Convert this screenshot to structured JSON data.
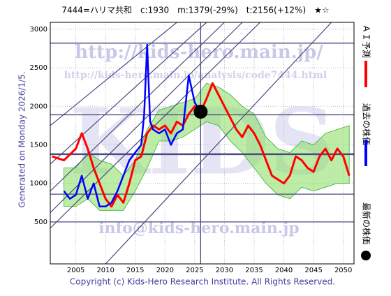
{
  "chart_data": {
    "type": "line",
    "title": "7444=ハリマ共和　c:1930　m:1379(-29%)　t:2156(+12%)　★☆",
    "side_note": "Generated on Monday 2026/1/5.",
    "copyright": "Copyright (c) Kids-Hero Research Institute. All Rights Reserved.",
    "watermarks": [
      "http://kids-hero.main.jp/",
      "http://kids-hero.main.jp/analysis/code7444.html",
      "info@kids-hero.main.jp",
      "KIDS"
    ],
    "xlim": [
      2000.7,
      2051.8
    ],
    "ylim": [
      -45,
      3090
    ],
    "xticks": [
      2005,
      2010,
      2015,
      2020,
      2025,
      2030,
      2035,
      2040,
      2045,
      2050
    ],
    "yticks": [
      500,
      1000,
      1500,
      2000,
      2500,
      3000
    ],
    "grid": true,
    "levels": [
      2820,
      1890,
      1379,
      860,
      500
    ],
    "level_color": "#4a4a80",
    "now_line": 2026,
    "channels": [
      [
        2000.7,
        420,
        2036,
        3090
      ],
      [
        2000.7,
        620,
        2033,
        3090
      ],
      [
        2000.7,
        900,
        2030,
        3090
      ],
      [
        2000.7,
        1250,
        2027,
        3090
      ],
      [
        2000.7,
        1750,
        2022,
        3090
      ],
      [
        2010,
        -45,
        2048,
        3090
      ]
    ],
    "band": {
      "color": "#8fe06a",
      "x": [
        2003,
        2005,
        2007,
        2009,
        2011,
        2013,
        2015,
        2017,
        2019,
        2021,
        2023,
        2025,
        2027,
        2029,
        2031,
        2033,
        2035,
        2037,
        2039,
        2041,
        2043,
        2045,
        2047,
        2049,
        2051
      ],
      "upper": [
        1200,
        1200,
        1400,
        1300,
        1250,
        1100,
        1300,
        1700,
        1950,
        2000,
        2050,
        2100,
        2300,
        2250,
        2150,
        2000,
        1900,
        1600,
        1450,
        1400,
        1550,
        1500,
        1650,
        1700,
        1750
      ],
      "lower": [
        700,
        700,
        800,
        650,
        650,
        650,
        900,
        1200,
        1550,
        1550,
        1600,
        1700,
        1800,
        1750,
        1550,
        1400,
        1200,
        1000,
        850,
        800,
        950,
        900,
        950,
        1000,
        1000
      ]
    },
    "series": [
      {
        "name": "ＡＩ予測",
        "color": "#ff0000",
        "x": [
          2001,
          2003,
          2005,
          2006,
          2007,
          2008,
          2009,
          2010,
          2011,
          2012,
          2013,
          2014,
          2015,
          2016,
          2017,
          2018,
          2019,
          2020,
          2021,
          2022,
          2023,
          2024,
          2025,
          2026,
          2027,
          2028,
          2029,
          2030,
          2031,
          2032,
          2033,
          2034,
          2035,
          2036,
          2037,
          2038,
          2039,
          2040,
          2041,
          2042,
          2043,
          2044,
          2045,
          2046,
          2047,
          2048,
          2049,
          2050,
          2051
        ],
        "values": [
          1350,
          1300,
          1450,
          1650,
          1450,
          1200,
          1000,
          800,
          700,
          850,
          750,
          1000,
          1300,
          1350,
          1650,
          1750,
          1700,
          1750,
          1650,
          1800,
          1750,
          1900,
          2000,
          1930,
          2100,
          2300,
          2150,
          2000,
          1850,
          1700,
          1600,
          1750,
          1650,
          1500,
          1300,
          1100,
          1050,
          1000,
          1100,
          1350,
          1300,
          1200,
          1150,
          1350,
          1450,
          1300,
          1450,
          1350,
          1100
        ]
      },
      {
        "name": "過去の株価",
        "color": "#0000ff",
        "x": [
          2003,
          2004,
          2005,
          2006,
          2007,
          2008,
          2009,
          2010,
          2011,
          2012,
          2013,
          2014,
          2015,
          2016,
          2016.5,
          2017,
          2017.5,
          2018,
          2019,
          2020,
          2021,
          2022,
          2023,
          2024,
          2025,
          2026
        ],
        "values": [
          900,
          800,
          850,
          1100,
          800,
          1000,
          700,
          700,
          750,
          900,
          1100,
          1300,
          1400,
          1500,
          1900,
          2800,
          1800,
          1700,
          1650,
          1700,
          1500,
          1650,
          1700,
          2400,
          2050,
          1930
        ]
      }
    ],
    "latest": {
      "name": "最新の株価",
      "color": "#000000",
      "x": 2026,
      "value": 1930
    }
  }
}
